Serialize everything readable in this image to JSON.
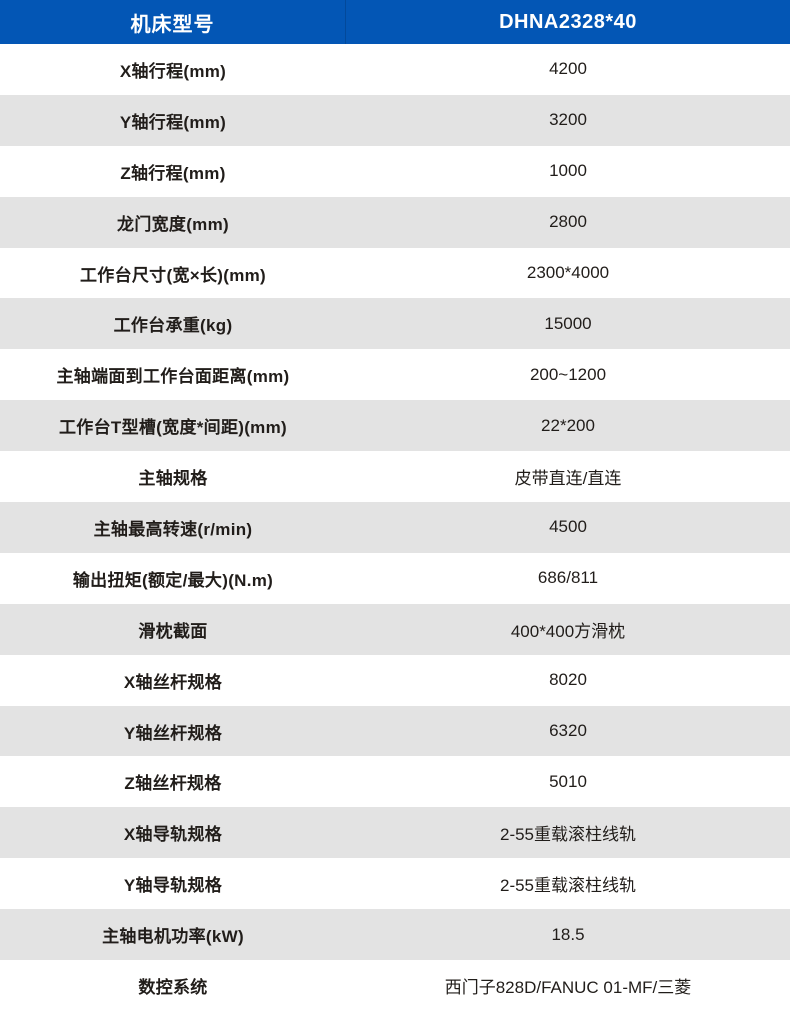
{
  "colors": {
    "header_bg": "#0356b5",
    "row_alt_bg": "#e3e3e3",
    "text": "#211d1a"
  },
  "header": {
    "model_label": "机床型号",
    "model_value": "DHNA2328*40"
  },
  "rows": [
    {
      "label": "X轴行程(mm)",
      "value": "4200"
    },
    {
      "label": "Y轴行程(mm)",
      "value": "3200"
    },
    {
      "label": "Z轴行程(mm)",
      "value": "1000"
    },
    {
      "label": "龙门宽度(mm)",
      "value": "2800"
    },
    {
      "label": "工作台尺寸(宽×长)(mm)",
      "value": "2300*4000"
    },
    {
      "label": "工作台承重(kg)",
      "value": "15000"
    },
    {
      "label": "主轴端面到工作台面距离(mm)",
      "value": "200~1200"
    },
    {
      "label": "工作台T型槽(宽度*间距)(mm)",
      "value": "22*200"
    },
    {
      "label": "主轴规格",
      "value": "皮带直连/直连"
    },
    {
      "label": "主轴最高转速(r/min)",
      "value": "4500"
    },
    {
      "label": "输出扭矩(额定/最大)(N.m)",
      "value": "686/811"
    },
    {
      "label": "滑枕截面",
      "value": "400*400方滑枕"
    },
    {
      "label": "X轴丝杆规格",
      "value": "8020"
    },
    {
      "label": "Y轴丝杆规格",
      "value": "6320"
    },
    {
      "label": "Z轴丝杆规格",
      "value": "5010"
    },
    {
      "label": "X轴导轨规格",
      "value": "2-55重载滚柱线轨"
    },
    {
      "label": "Y轴导轨规格",
      "value": "2-55重载滚柱线轨"
    },
    {
      "label": "主轴电机功率(kW)",
      "value": "18.5"
    },
    {
      "label": "数控系统",
      "value": "西门子828D/FANUC 01-MF/三菱"
    }
  ]
}
